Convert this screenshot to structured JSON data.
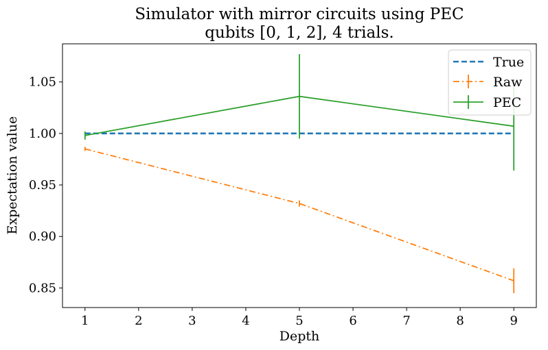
{
  "chart_data": {
    "type": "line",
    "title_lines": [
      "Simulator with mirror circuits using PEC",
      "qubits [0, 1, 2], 4 trials."
    ],
    "xlabel": "Depth",
    "ylabel": "Expectation value",
    "xlim": [
      0.58,
      9.42
    ],
    "ylim": [
      0.831,
      1.087
    ],
    "xticks": [
      1,
      2,
      3,
      4,
      5,
      6,
      7,
      8,
      9
    ],
    "yticks": [
      0.85,
      0.9,
      0.95,
      1.0,
      1.05
    ],
    "ytick_labels": [
      "0.85",
      "0.90",
      "0.95",
      "1.00",
      "1.05"
    ],
    "grid": false,
    "legend_position": "top-right",
    "series": [
      {
        "name": "True",
        "x": [
          1,
          5,
          9
        ],
        "y": [
          1.0,
          1.0,
          1.0
        ],
        "err": null,
        "style": "dashed",
        "color": "#1f77b4"
      },
      {
        "name": "Raw",
        "x": [
          1,
          5,
          9
        ],
        "y": [
          0.985,
          0.932,
          0.857
        ],
        "err": [
          0.002,
          0.003,
          0.012
        ],
        "style": "dashdot",
        "color": "#ff7f0e"
      },
      {
        "name": "PEC",
        "x": [
          1,
          5,
          9
        ],
        "y": [
          0.998,
          1.036,
          1.007
        ],
        "err": [
          0.004,
          0.041,
          0.043
        ],
        "style": "solid",
        "color": "#2ca02c"
      }
    ]
  }
}
